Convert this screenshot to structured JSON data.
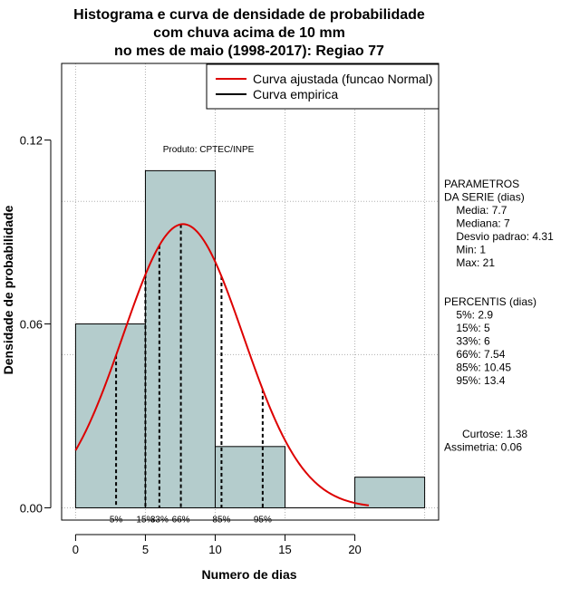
{
  "chart_data": {
    "type": "bar",
    "title_lines": [
      "Histograma e curva de densidade de probabilidade",
      "com chuva acima de 10 mm",
      "no mes de maio (1998-2017): Regiao 77"
    ],
    "xlabel": "Numero de dias",
    "ylabel": "Densidade de probabilidade",
    "xlim": [
      -1,
      26
    ],
    "ylim": [
      -0.004,
      0.145
    ],
    "xticks": [
      0,
      5,
      10,
      15,
      20
    ],
    "xtick_labels": [
      "0",
      "5",
      "10",
      "15",
      "20"
    ],
    "yticks": [
      0.0,
      0.06,
      0.12
    ],
    "ytick_labels": [
      "0.00",
      "0.06",
      "0.12"
    ],
    "grid_x": [
      0,
      5,
      10,
      15,
      20,
      25
    ],
    "grid_y": [
      0.0,
      0.05,
      0.1
    ],
    "bins": [
      {
        "from": 0,
        "to": 5,
        "density": 0.06
      },
      {
        "from": 5,
        "to": 10,
        "density": 0.11
      },
      {
        "from": 10,
        "to": 15,
        "density": 0.02
      },
      {
        "from": 15,
        "to": 20,
        "density": 0.0
      },
      {
        "from": 20,
        "to": 25,
        "density": 0.01
      }
    ],
    "bar_color": "#b4cccc",
    "normal_curve": {
      "name": "Curva ajustada (funcao Normal)",
      "mean": 7.7,
      "sd": 4.31,
      "from": 0,
      "to": 21,
      "color": "#dd0000"
    },
    "empirical_curve": {
      "name": "Curva empirica",
      "color": "#000000"
    },
    "percentiles": [
      {
        "value": 2.9,
        "label": "5%"
      },
      {
        "value": 5,
        "label": "15%"
      },
      {
        "value": 6,
        "label": "33%"
      },
      {
        "value": 7.54,
        "label": "66%"
      },
      {
        "value": 10.45,
        "label": "85%"
      },
      {
        "value": 13.4,
        "label": "95%"
      }
    ],
    "legend": {
      "placement": "top-right",
      "entries": [
        "Curva ajustada (funcao Normal)",
        "Curva empirica"
      ]
    },
    "annotation": "Produto: CPTEC/INPE",
    "side_text": {
      "params_lines": [
        "PARAMETROS",
        "DA SERIE (dias)",
        "  Media: 7.7",
        "  Mediana: 7",
        "  Desvio padrao: 4.31",
        "  Min: 1",
        "  Max: 21"
      ],
      "percent_lines": [
        "PERCENTIS (dias)",
        "  5%: 2.9",
        "  15%: 5",
        "  33%: 6",
        "  66%: 7.54",
        "  85%: 10.45",
        "  95%: 13.4"
      ],
      "stats_lines": [
        "   Curtose: 1.38",
        "Assimetria: 0.06"
      ]
    }
  }
}
